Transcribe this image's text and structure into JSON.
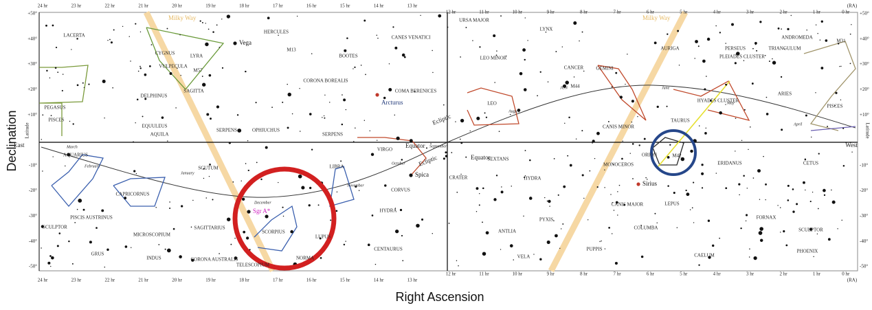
{
  "axes": {
    "y_label": "Declination",
    "x_label": "Right Ascension",
    "ra_unit": "(RA)",
    "ra_left": [
      "24 hr",
      "23 hr",
      "22 hr",
      "21 hr",
      "20 hr",
      "19 hr",
      "18 hr",
      "17 hr",
      "16 hr",
      "15 hr",
      "14 hr",
      "13 hr"
    ],
    "ra_right": [
      "12 hr",
      "11 hr",
      "10 hr",
      "9 hr",
      "8 hr",
      "7 hr",
      "6 hr",
      "5 hr",
      "4 hr",
      "3 hr",
      "2 hr",
      "1 hr",
      "0 hr"
    ],
    "dec": [
      "+50°",
      "+40°",
      "+30°",
      "+20°",
      "+10°",
      "-10°",
      "-20°",
      "-30°",
      "-40°",
      "-50°"
    ],
    "side": "Latitude",
    "east": "East",
    "west": "West"
  },
  "constellations": [
    "LACERTA",
    "CYGNUS",
    "VULPECULA",
    "LYRA",
    "M57",
    "HERCULES",
    "M13",
    "CORONA BOREALIS",
    "BOOTES",
    "CANES VENATICI",
    "COMA BERENICES",
    "PEGASUS",
    "DELPHINUS",
    "SAGITTA",
    "PISCES",
    "EQUULEUS",
    "AQUILA",
    "SERPENS",
    "OPHIUCHUS",
    "SERPENS",
    "VIRGO",
    "AQUARIUS",
    "SCUTUM",
    "LIBRA",
    "CAPRICORNUS",
    "CORVUS",
    "SCULPTOR",
    "PISCIS AUSTRINUS",
    "SAGITTARIUS",
    "SCORPIUS",
    "HYDRA",
    "MICROSCOPIUM",
    "LUPUS",
    "CENTAURUS",
    "GRUS",
    "INDUS",
    "CORONA AUSTRALIS",
    "TELESCOPIUM",
    "NORMA",
    "URSA MAJOR",
    "LYNX",
    "LEO MINOR",
    "CANCER",
    "M44",
    "GEMINI",
    "AURIGA",
    "PERSEUS",
    "TRIANGULUM",
    "ANDROMEDA",
    "M31",
    "LEO",
    "CANIS MINOR",
    "TAURUS",
    "HYADES CLUSTER",
    "PLEIADES CLUSTER",
    "ARIES",
    "PISCES",
    "ORION",
    "M42",
    "SEXTANS",
    "CRATER",
    "HYDRA",
    "MONOCEROS",
    "ERIDANUS",
    "CETUS",
    "CANIS MAJOR",
    "LEPUS",
    "ANTLIA",
    "PYXIS",
    "COLUMBA",
    "FORNAX",
    "SCULPTOR",
    "PUPPIS",
    "VELA",
    "CAELUM",
    "PHOENIX"
  ],
  "stars": [
    "Vega",
    "Arcturus",
    "Spica",
    "Sgr A*",
    "Sirius"
  ],
  "months": [
    "March",
    "February",
    "January",
    "December",
    "November",
    "October",
    "September",
    "August",
    "JUN",
    "June",
    "May",
    "April"
  ],
  "features": {
    "milky_way": "Milky Way",
    "ecliptic": "Ecliptic",
    "equator": "Equator"
  }
}
